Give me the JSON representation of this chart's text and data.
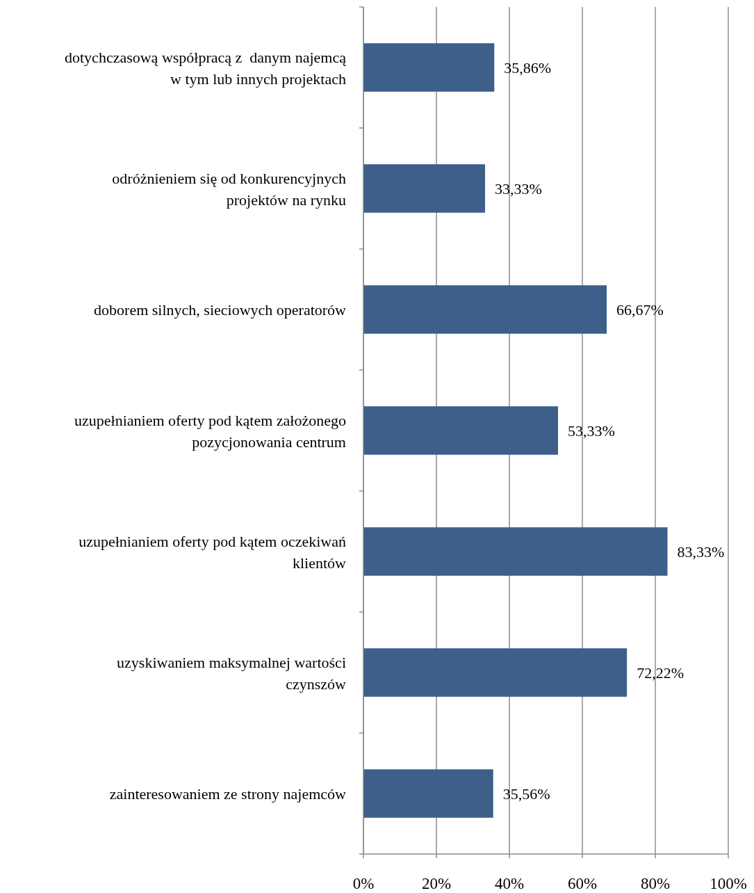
{
  "chart_data": {
    "type": "bar",
    "orientation": "horizontal",
    "categories": [
      "dotychczasową współpracą z  danym najemcą w tym lub innych projektach",
      "odróżnieniem się od konkurencyjnych projektów na rynku",
      "doborem silnych, sieciowych operatorów",
      "uzupełnianiem oferty pod kątem założonego pozycjonowania centrum",
      "uzupełnianiem oferty pod kątem oczekiwań klientów",
      "uzyskiwaniem maksymalnej wartości czynszów",
      "zainteresowaniem ze strony najemców"
    ],
    "values": [
      35.86,
      33.33,
      66.67,
      53.33,
      83.33,
      72.22,
      35.56
    ],
    "value_labels": [
      "35,86%",
      "33,33%",
      "66,67%",
      "53,33%",
      "83,33%",
      "72,22%",
      "35,56%"
    ],
    "color": "#3d5f8a",
    "xlim": [
      0,
      100
    ],
    "xticks": [
      {
        "value": 0,
        "label": "0%"
      },
      {
        "value": 20,
        "label": "20%"
      },
      {
        "value": 40,
        "label": "40%"
      },
      {
        "value": 60,
        "label": "60%"
      },
      {
        "value": 80,
        "label": "80%"
      },
      {
        "value": 100,
        "label": "100%"
      }
    ],
    "grid": "x"
  }
}
